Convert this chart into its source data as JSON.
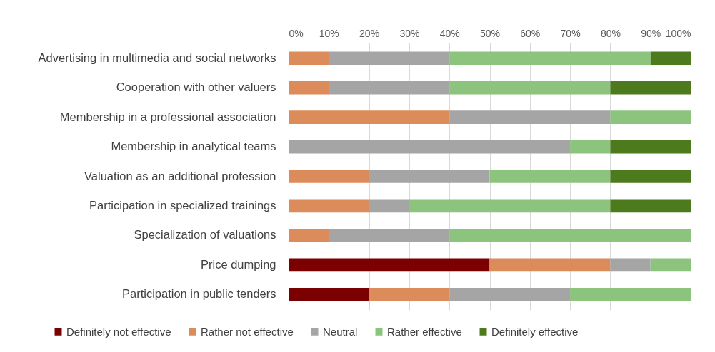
{
  "chart_data": {
    "type": "bar",
    "orientation": "horizontal",
    "stacked": true,
    "categories": [
      "Advertising in multimedia and social networks",
      "Cooperation with other valuers",
      "Membership in a professional association",
      "Membership in analytical teams",
      "Valuation as an additional profession",
      "Participation in specialized trainings",
      "Specialization of valuations",
      "Price dumping",
      "Participation in public tenders"
    ],
    "series": [
      {
        "name": "Definitely not effective",
        "color": "#7b0000",
        "values": [
          0,
          0,
          0,
          0,
          0,
          0,
          0,
          50,
          20
        ]
      },
      {
        "name": "Rather not effective",
        "color": "#dc8b5a",
        "values": [
          10,
          10,
          40,
          0,
          20,
          20,
          10,
          30,
          20
        ]
      },
      {
        "name": "Neutral",
        "color": "#a5a5a5",
        "values": [
          30,
          30,
          40,
          70,
          30,
          10,
          30,
          10,
          30
        ]
      },
      {
        "name": "Rather effective",
        "color": "#8cc47e",
        "values": [
          50,
          40,
          20,
          10,
          30,
          50,
          60,
          10,
          30
        ]
      },
      {
        "name": "Definitely effective",
        "color": "#4e7a1e",
        "values": [
          10,
          20,
          0,
          20,
          20,
          20,
          0,
          0,
          0
        ]
      }
    ],
    "xlim": [
      0,
      100
    ],
    "xticks": [
      {
        "value": 0,
        "label": "0%"
      },
      {
        "value": 10,
        "label": "10%"
      },
      {
        "value": 20,
        "label": "20%"
      },
      {
        "value": 30,
        "label": "30%"
      },
      {
        "value": 40,
        "label": "40%"
      },
      {
        "value": 50,
        "label": "50%"
      },
      {
        "value": 60,
        "label": "60%"
      },
      {
        "value": 70,
        "label": "70%"
      },
      {
        "value": 80,
        "label": "80%"
      },
      {
        "value": 90,
        "label": "90%"
      },
      {
        "value": 100,
        "label": "100%"
      }
    ],
    "grid": "x",
    "legend": "bottom"
  }
}
